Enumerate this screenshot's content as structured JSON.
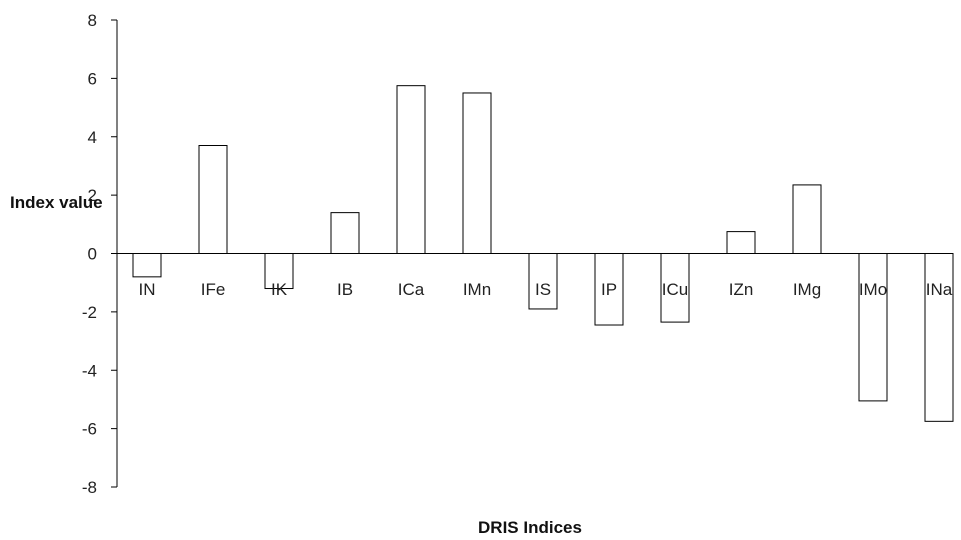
{
  "chart_data": {
    "type": "bar",
    "title": "",
    "xlabel": "DRIS Indices",
    "ylabel": "Index value",
    "ylim": [
      -8,
      8
    ],
    "yticks": [
      8,
      6,
      4,
      2,
      0,
      -2,
      -4,
      -6,
      -8
    ],
    "grid": false,
    "legend": "none",
    "categories": [
      "IN",
      "IFe",
      "IK",
      "IB",
      "ICa",
      "IMn",
      "IS",
      "IP",
      "ICu",
      "IZn",
      "IMg",
      "IMo",
      "INa"
    ],
    "values": [
      -0.8,
      3.7,
      -1.2,
      1.4,
      5.75,
      5.5,
      -1.9,
      -2.45,
      -2.35,
      0.75,
      2.35,
      -5.05,
      -5.75
    ],
    "colors": {
      "bar_fill": "#ffffff",
      "bar_stroke": "#000000",
      "axis": "#000000"
    }
  }
}
